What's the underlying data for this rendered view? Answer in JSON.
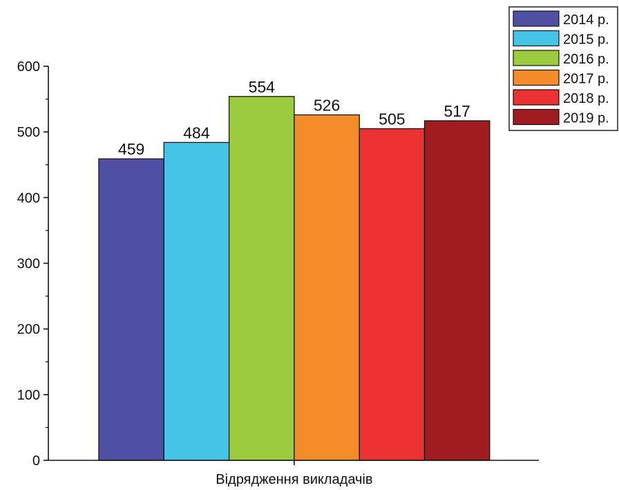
{
  "chart_data": {
    "type": "bar",
    "xlabel": "Відрядження викладачів",
    "ylabel": "",
    "ylim": [
      0,
      600
    ],
    "yticks": [
      0,
      100,
      200,
      300,
      400,
      500,
      600
    ],
    "grid": false,
    "legend_position": "top-right",
    "series": [
      {
        "name": "2014 р.",
        "value": 459,
        "color": "#4f4fa3"
      },
      {
        "name": "2015 р.",
        "value": 484,
        "color": "#45c4e6"
      },
      {
        "name": "2016 р.",
        "value": 554,
        "color": "#9ccb3d"
      },
      {
        "name": "2017 р.",
        "value": 526,
        "color": "#f48c2a"
      },
      {
        "name": "2018 р.",
        "value": 505,
        "color": "#ea3232"
      },
      {
        "name": "2019 р.",
        "value": 517,
        "color": "#a01c20"
      }
    ]
  }
}
